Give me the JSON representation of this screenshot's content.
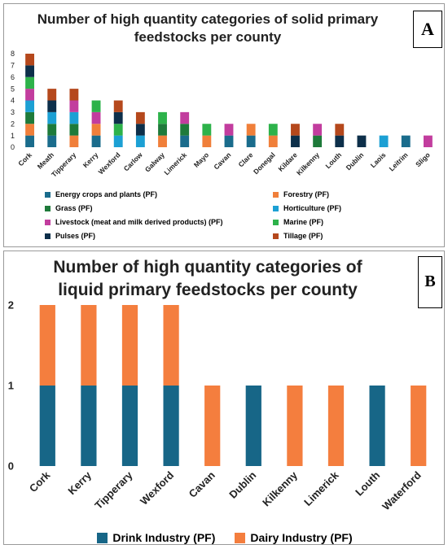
{
  "panels": {
    "a": {
      "title": "Number of high quantity categories of solid primary feedstocks per county",
      "letter": "A"
    },
    "b": {
      "title": "Number of high quantity categories of liquid primary feedstocks per county",
      "letter": "B"
    }
  },
  "chart_data": [
    {
      "type": "bar",
      "stacked": true,
      "title": "Number of high quantity categories of solid primary feedstocks per county",
      "categories": [
        "Cork",
        "Meath",
        "Tipperary",
        "Kerry",
        "Wexford",
        "Carlow",
        "Galway",
        "Limerick",
        "Mayo",
        "Cavan",
        "Clare",
        "Donegal",
        "Kildare",
        "Kilkenny",
        "Louth",
        "Dublin",
        "Laois",
        "Leitrim",
        "Sligo"
      ],
      "ylim": [
        0,
        8
      ],
      "yticks": [
        0,
        1,
        2,
        3,
        4,
        5,
        6,
        7,
        8
      ],
      "grid": false,
      "legend_position": "bottom",
      "series": [
        {
          "name": "Energy crops and plants (PF)",
          "color": "#1a6c8c",
          "values": [
            1,
            1,
            0,
            1,
            0,
            0,
            0,
            1,
            0,
            1,
            1,
            0,
            0,
            0,
            0,
            0,
            0,
            1,
            0
          ]
        },
        {
          "name": "Forestry (PF)",
          "color": "#f07f3a",
          "values": [
            1,
            0,
            1,
            1,
            0,
            0,
            1,
            0,
            1,
            0,
            1,
            1,
            0,
            0,
            0,
            0,
            0,
            0,
            0
          ]
        },
        {
          "name": "Grass (PF)",
          "color": "#1e7a3a",
          "values": [
            1,
            1,
            1,
            0,
            0,
            0,
            1,
            1,
            0,
            0,
            0,
            0,
            0,
            1,
            0,
            0,
            0,
            0,
            0
          ]
        },
        {
          "name": "Horticulture (PF)",
          "color": "#1ca0d4",
          "values": [
            1,
            1,
            1,
            0,
            1,
            1,
            0,
            0,
            0,
            0,
            0,
            0,
            0,
            0,
            0,
            0,
            1,
            0,
            0
          ]
        },
        {
          "name": "Livestock (meat and milk derived products) (PF)",
          "color": "#c23d9e",
          "values": [
            1,
            0,
            1,
            1,
            0,
            0,
            0,
            1,
            0,
            1,
            0,
            0,
            0,
            1,
            0,
            0,
            0,
            0,
            1
          ]
        },
        {
          "name": "Marine (PF)",
          "color": "#2db24a",
          "values": [
            1,
            0,
            0,
            1,
            1,
            0,
            1,
            0,
            1,
            0,
            0,
            1,
            0,
            0,
            0,
            0,
            0,
            0,
            0
          ]
        },
        {
          "name": "Pulses (PF)",
          "color": "#0d2f4a",
          "values": [
            1,
            1,
            0,
            0,
            1,
            1,
            0,
            0,
            0,
            0,
            0,
            0,
            1,
            0,
            1,
            1,
            0,
            0,
            0
          ]
        },
        {
          "name": "Tillage (PF)",
          "color": "#b5481c",
          "values": [
            1,
            1,
            1,
            0,
            1,
            1,
            0,
            0,
            0,
            0,
            0,
            0,
            1,
            0,
            1,
            0,
            0,
            0,
            0
          ]
        }
      ]
    },
    {
      "type": "bar",
      "stacked": true,
      "title": "Number of high quantity categories of liquid primary feedstocks per county",
      "categories": [
        "Cork",
        "Kerry",
        "Tipperary",
        "Wexford",
        "Cavan",
        "Dublin",
        "Kilkenny",
        "Limerick",
        "Louth",
        "Waterford"
      ],
      "ylim": [
        0,
        2
      ],
      "yticks": [
        0,
        1,
        2
      ],
      "grid": false,
      "legend_position": "bottom",
      "series": [
        {
          "name": "Drink Industry (PF)",
          "color": "#176687",
          "values": [
            1,
            1,
            1,
            1,
            0,
            1,
            0,
            0,
            1,
            0
          ]
        },
        {
          "name": "Dairy Industry (PF)",
          "color": "#f47e3e",
          "values": [
            1,
            1,
            1,
            1,
            1,
            0,
            1,
            1,
            0,
            1
          ]
        }
      ]
    }
  ]
}
